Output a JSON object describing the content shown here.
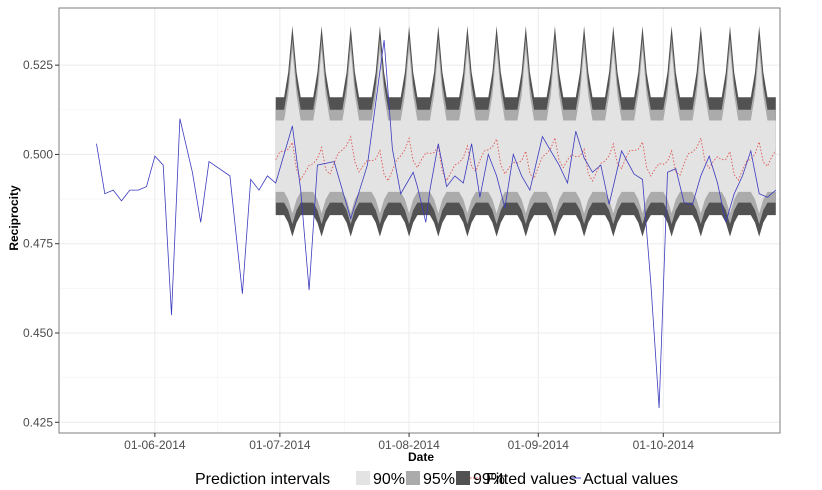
{
  "chart_data": {
    "type": "line",
    "title": "",
    "xlabel": "Date",
    "ylabel": "Reciprocity",
    "ylim": [
      0.422,
      0.541
    ],
    "xlim": [
      "2014-05-09",
      "2014-10-29"
    ],
    "x_ticks": [
      {
        "date": "2014-06-01",
        "label": "01-06-2014"
      },
      {
        "date": "2014-07-01",
        "label": "01-07-2014"
      },
      {
        "date": "2014-08-01",
        "label": "01-08-2014"
      },
      {
        "date": "2014-09-01",
        "label": "01-09-2014"
      },
      {
        "date": "2014-10-01",
        "label": "01-10-2014"
      }
    ],
    "y_ticks": [
      {
        "value": 0.425,
        "label": "0.425"
      },
      {
        "value": 0.45,
        "label": "0.450"
      },
      {
        "value": 0.475,
        "label": "0.475"
      },
      {
        "value": 0.5,
        "label": "0.500"
      },
      {
        "value": 0.525,
        "label": "0.525"
      }
    ],
    "grid": true,
    "legend_position": "bottom",
    "legend": {
      "intervals_title": "Prediction intervals",
      "items": [
        {
          "label": "90%",
          "color": "#e3e3e3"
        },
        {
          "label": "95%",
          "color": "#ababab"
        },
        {
          "label": "99%",
          "color": "#525252"
        },
        {
          "label": "Fitted values",
          "color": "#e05555",
          "style": "dotted"
        },
        {
          "label": "Actual values",
          "color": "#3b3bbf",
          "style": "solid"
        }
      ]
    },
    "colors": {
      "band_90": "#e3e3e3",
      "band_95": "#ababab",
      "band_99": "#525252",
      "fitted": "#e05555",
      "actual": "#3b3bbf",
      "grid": "#ebebeb",
      "panel_border": "#7f7f7f"
    },
    "series": [
      {
        "name": "Actual values",
        "points": [
          [
            "2014-05-18",
            0.503
          ],
          [
            "2014-05-20",
            0.489
          ],
          [
            "2014-05-22",
            0.49
          ],
          [
            "2014-05-24",
            0.487
          ],
          [
            "2014-05-26",
            0.49
          ],
          [
            "2014-05-28",
            0.49
          ],
          [
            "2014-05-30",
            0.491
          ],
          [
            "2014-06-01",
            0.4995
          ],
          [
            "2014-06-03",
            0.497
          ],
          [
            "2014-06-05",
            0.455
          ],
          [
            "2014-06-07",
            0.51
          ],
          [
            "2014-06-10",
            0.495
          ],
          [
            "2014-06-12",
            0.481
          ],
          [
            "2014-06-14",
            0.498
          ],
          [
            "2014-06-19",
            0.494
          ],
          [
            "2014-06-22",
            0.461
          ],
          [
            "2014-06-24",
            0.493
          ],
          [
            "2014-06-26",
            0.49
          ],
          [
            "2014-06-28",
            0.494
          ],
          [
            "2014-06-30",
            0.492
          ],
          [
            "2014-07-04",
            0.508
          ],
          [
            "2014-07-06",
            0.49
          ],
          [
            "2014-07-08",
            0.462
          ],
          [
            "2014-07-10",
            0.497
          ],
          [
            "2014-07-14",
            0.498
          ],
          [
            "2014-07-18",
            0.482
          ],
          [
            "2014-07-22",
            0.497
          ],
          [
            "2014-07-26",
            0.532
          ],
          [
            "2014-07-28",
            0.5015
          ],
          [
            "2014-07-30",
            0.489
          ],
          [
            "2014-08-02",
            0.495
          ],
          [
            "2014-08-03",
            0.491
          ],
          [
            "2014-08-05",
            0.481
          ],
          [
            "2014-08-06",
            0.49
          ],
          [
            "2014-08-08",
            0.503
          ],
          [
            "2014-08-10",
            0.491
          ],
          [
            "2014-08-12",
            0.494
          ],
          [
            "2014-08-14",
            0.492
          ],
          [
            "2014-08-16",
            0.503
          ],
          [
            "2014-08-18",
            0.488
          ],
          [
            "2014-08-20",
            0.5
          ],
          [
            "2014-08-22",
            0.494
          ],
          [
            "2014-08-24",
            0.485
          ],
          [
            "2014-08-26",
            0.5
          ],
          [
            "2014-08-28",
            0.494
          ],
          [
            "2014-08-30",
            0.49
          ],
          [
            "2014-09-02",
            0.505
          ],
          [
            "2014-09-04",
            0.501
          ],
          [
            "2014-09-06",
            0.497
          ],
          [
            "2014-09-08",
            0.492
          ],
          [
            "2014-09-10",
            0.5065
          ],
          [
            "2014-09-12",
            0.499
          ],
          [
            "2014-09-14",
            0.495
          ],
          [
            "2014-09-16",
            0.497
          ],
          [
            "2014-09-18",
            0.486
          ],
          [
            "2014-09-21",
            0.501
          ],
          [
            "2014-09-24",
            0.4945
          ],
          [
            "2014-09-26",
            0.493
          ],
          [
            "2014-09-28",
            0.464
          ],
          [
            "2014-09-30",
            0.429
          ],
          [
            "2014-10-02",
            0.495
          ],
          [
            "2014-10-04",
            0.496
          ],
          [
            "2014-10-06",
            0.4865
          ],
          [
            "2014-10-08",
            0.486
          ],
          [
            "2014-10-10",
            0.494
          ],
          [
            "2014-10-12",
            0.4995
          ],
          [
            "2014-10-14",
            0.492
          ],
          [
            "2014-10-16",
            0.481
          ],
          [
            "2014-10-18",
            0.489
          ],
          [
            "2014-10-20",
            0.494
          ],
          [
            "2014-10-22",
            0.501
          ],
          [
            "2014-10-24",
            0.489
          ],
          [
            "2014-10-26",
            0.488
          ],
          [
            "2014-10-28",
            0.49
          ]
        ]
      }
    ]
  }
}
